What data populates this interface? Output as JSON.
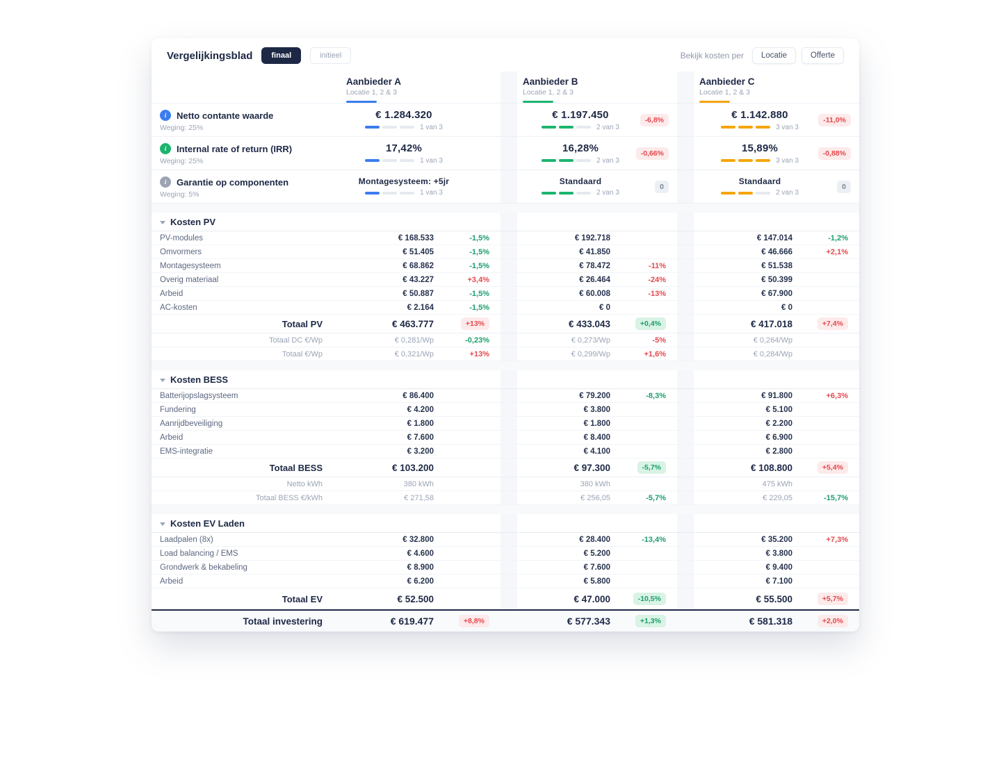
{
  "header": {
    "title": "Vergelijkingsblad",
    "toggles": [
      {
        "label": "finaal",
        "active": true
      },
      {
        "label": "initieel",
        "active": false
      }
    ],
    "view_by_label": "Bekijk kosten per",
    "view_by_options": [
      {
        "label": "Locatie"
      },
      {
        "label": "Offerte"
      }
    ]
  },
  "providers": [
    {
      "name": "Aanbieder A",
      "subtitle": "Locatie 1, 2 & 3",
      "color": "#3b7df0"
    },
    {
      "name": "Aanbieder B",
      "subtitle": "Locatie 1, 2 & 3",
      "color": "#1db56e"
    },
    {
      "name": "Aanbieder C",
      "subtitle": "Locatie 1, 2 & 3",
      "color": "#f5a60b"
    }
  ],
  "metrics": [
    {
      "label": "Netto contante waarde",
      "weight": "Weging: 25%",
      "icon": "info-icon",
      "icon_color": "#3b7df0",
      "cells": [
        {
          "value": "€ 1.284.320",
          "rank": 1,
          "rank_label": "1 van 3",
          "badge": null
        },
        {
          "value": "€ 1.197.450",
          "rank": 2,
          "rank_label": "2 van 3",
          "badge": {
            "text": "-6,8%",
            "type": "red"
          }
        },
        {
          "value": "€ 1.142.880",
          "rank": 3,
          "rank_label": "3 van 3",
          "badge": {
            "text": "-11,0%",
            "type": "red"
          }
        }
      ]
    },
    {
      "label": "Internal rate of return (IRR)",
      "weight": "Weging: 25%",
      "icon": "info-icon",
      "icon_color": "#1db56e",
      "cells": [
        {
          "value": "17,42%",
          "rank": 1,
          "rank_label": "1 van 3",
          "badge": null
        },
        {
          "value": "16,28%",
          "rank": 2,
          "rank_label": "2 van 3",
          "badge": {
            "text": "-0,66%",
            "type": "red"
          }
        },
        {
          "value": "15,89%",
          "rank": 3,
          "rank_label": "3 van 3",
          "badge": {
            "text": "-0,88%",
            "type": "red"
          }
        }
      ]
    },
    {
      "label": "Garantie op componenten",
      "weight": "Weging: 5%",
      "icon": "info-icon",
      "icon_color": "#9ca4b2",
      "cells": [
        {
          "value": "Montagesysteem: +5jr",
          "rank": 1,
          "rank_label": "1 van 3",
          "badge": null
        },
        {
          "value": "Standaard",
          "rank": 2,
          "rank_label": "2 van 3",
          "badge": {
            "text": "0",
            "type": "gray"
          }
        },
        {
          "value": "Standaard",
          "rank": 2,
          "rank_label": "2 van 3",
          "badge": {
            "text": "0",
            "type": "gray"
          }
        }
      ]
    }
  ],
  "sections": [
    {
      "title": "Kosten PV",
      "rows": [
        {
          "label": "PV-modules",
          "cells": [
            {
              "value": "€ 168.533",
              "delta": "-1,5%",
              "delta_color": "green"
            },
            {
              "value": "€ 192.718",
              "delta": null
            },
            {
              "value": "€ 147.014",
              "delta": "-1,2%",
              "delta_color": "green"
            }
          ]
        },
        {
          "label": "Omvormers",
          "cells": [
            {
              "value": "€ 51.405",
              "delta": "-1,5%",
              "delta_color": "green"
            },
            {
              "value": "€ 41.850",
              "delta": null
            },
            {
              "value": "€ 46.666",
              "delta": "+2,1%",
              "delta_color": "red"
            }
          ]
        },
        {
          "label": "Montagesysteem",
          "cells": [
            {
              "value": "€ 68.862",
              "delta": "-1,5%",
              "delta_color": "green"
            },
            {
              "value": "€ 78.472",
              "delta": "-11%",
              "delta_color": "red"
            },
            {
              "value": "€ 51.538",
              "delta": null
            }
          ]
        },
        {
          "label": "Overig materiaal",
          "cells": [
            {
              "value": "€ 43.227",
              "delta": "+3,4%",
              "delta_color": "red"
            },
            {
              "value": "€ 26.464",
              "delta": "-24%",
              "delta_color": "red"
            },
            {
              "value": "€ 50.399",
              "delta": null
            }
          ]
        },
        {
          "label": "Arbeid",
          "cells": [
            {
              "value": "€ 50.887",
              "delta": "-1,5%",
              "delta_color": "green"
            },
            {
              "value": "€ 60.008",
              "delta": "-13%",
              "delta_color": "red"
            },
            {
              "value": "€ 67.900",
              "delta": null
            }
          ]
        },
        {
          "label": "AC-kosten",
          "cells": [
            {
              "value": "€ 2.164",
              "delta": "-1,5%",
              "delta_color": "green"
            },
            {
              "value": "€ 0",
              "delta": null
            },
            {
              "value": "€ 0",
              "delta": null
            }
          ]
        }
      ],
      "total": {
        "label": "Totaal PV",
        "cells": [
          {
            "value": "€ 463.777",
            "badge": {
              "text": "+13%",
              "type": "red"
            }
          },
          {
            "value": "€ 433.043",
            "badge": {
              "text": "+0,4%",
              "type": "green"
            }
          },
          {
            "value": "€ 417.018",
            "badge": {
              "text": "+7,4%",
              "type": "red"
            }
          }
        ]
      },
      "subrows": [
        {
          "label": "Totaal DC €/Wp",
          "cells": [
            {
              "value": "€ 0,281/Wp",
              "delta": "-0,23%",
              "delta_color": "green"
            },
            {
              "value": "€ 0,273/Wp",
              "delta": "-5%",
              "delta_color": "red"
            },
            {
              "value": "€ 0,264/Wp",
              "delta": null
            }
          ]
        },
        {
          "label": "Totaal €/Wp",
          "cells": [
            {
              "value": "€ 0,321/Wp",
              "delta": "+13%",
              "delta_color": "red"
            },
            {
              "value": "€ 0,299/Wp",
              "delta": "+1,6%",
              "delta_color": "red"
            },
            {
              "value": "€ 0,284/Wp",
              "delta": null
            }
          ]
        }
      ]
    },
    {
      "title": "Kosten BESS",
      "rows": [
        {
          "label": "Batterijopslagsysteem",
          "cells": [
            {
              "value": "€ 86.400",
              "delta": null
            },
            {
              "value": "€ 79.200",
              "delta": "-8,3%",
              "delta_color": "green"
            },
            {
              "value": "€ 91.800",
              "delta": "+6,3%",
              "delta_color": "red"
            }
          ]
        },
        {
          "label": "Fundering",
          "cells": [
            {
              "value": "€ 4.200",
              "delta": null
            },
            {
              "value": "€ 3.800",
              "delta": null
            },
            {
              "value": "€ 5.100",
              "delta": null
            }
          ]
        },
        {
          "label": "Aanrijdbeveiliging",
          "cells": [
            {
              "value": "€ 1.800",
              "delta": null
            },
            {
              "value": "€ 1.800",
              "delta": null
            },
            {
              "value": "€ 2.200",
              "delta": null
            }
          ]
        },
        {
          "label": "Arbeid",
          "cells": [
            {
              "value": "€ 7.600",
              "delta": null
            },
            {
              "value": "€ 8.400",
              "delta": null
            },
            {
              "value": "€ 6.900",
              "delta": null
            }
          ]
        },
        {
          "label": "EMS-integratie",
          "cells": [
            {
              "value": "€ 3.200",
              "delta": null
            },
            {
              "value": "€ 4.100",
              "delta": null
            },
            {
              "value": "€ 2.800",
              "delta": null
            }
          ]
        }
      ],
      "total": {
        "label": "Totaal BESS",
        "cells": [
          {
            "value": "€ 103.200",
            "badge": null
          },
          {
            "value": "€ 97.300",
            "badge": {
              "text": "-5,7%",
              "type": "green"
            }
          },
          {
            "value": "€ 108.800",
            "badge": {
              "text": "+5,4%",
              "type": "red"
            }
          }
        ]
      },
      "subrows": [
        {
          "label": "Netto kWh",
          "cells": [
            {
              "value": "380 kWh",
              "delta": null
            },
            {
              "value": "380 kWh",
              "delta": null
            },
            {
              "value": "475 kWh",
              "delta": null
            }
          ]
        },
        {
          "label": "Totaal BESS €/kWh",
          "cells": [
            {
              "value": "€ 271,58",
              "delta": null
            },
            {
              "value": "€ 256,05",
              "delta": "-5,7%",
              "delta_color": "green"
            },
            {
              "value": "€ 229,05",
              "delta": "-15,7%",
              "delta_color": "green"
            }
          ]
        }
      ]
    },
    {
      "title": "Kosten EV Laden",
      "rows": [
        {
          "label": "Laadpalen (8x)",
          "cells": [
            {
              "value": "€ 32.800",
              "delta": null
            },
            {
              "value": "€ 28.400",
              "delta": "-13,4%",
              "delta_color": "green"
            },
            {
              "value": "€ 35.200",
              "delta": "+7,3%",
              "delta_color": "red"
            }
          ]
        },
        {
          "label": "Load balancing / EMS",
          "cells": [
            {
              "value": "€ 4.600",
              "delta": null
            },
            {
              "value": "€ 5.200",
              "delta": null
            },
            {
              "value": "€ 3.800",
              "delta": null
            }
          ]
        },
        {
          "label": "Grondwerk & bekabeling",
          "cells": [
            {
              "value": "€ 8.900",
              "delta": null
            },
            {
              "value": "€ 7.600",
              "delta": null
            },
            {
              "value": "€ 9.400",
              "delta": null
            }
          ]
        },
        {
          "label": "Arbeid",
          "cells": [
            {
              "value": "€ 6.200",
              "delta": null
            },
            {
              "value": "€ 5.800",
              "delta": null
            },
            {
              "value": "€ 7.100",
              "delta": null
            }
          ]
        }
      ],
      "total": {
        "label": "Totaal EV",
        "cells": [
          {
            "value": "€ 52.500",
            "badge": null
          },
          {
            "value": "€ 47.000",
            "badge": {
              "text": "-10,5%",
              "type": "green"
            }
          },
          {
            "value": "€ 55.500",
            "badge": {
              "text": "+5,7%",
              "type": "red"
            }
          }
        ]
      },
      "subrows": []
    }
  ],
  "grand_total": {
    "label": "Totaal investering",
    "cells": [
      {
        "value": "€ 619.477",
        "badge": {
          "text": "+8,8%",
          "type": "red"
        }
      },
      {
        "value": "€ 577.343",
        "badge": {
          "text": "+1,3%",
          "type": "green"
        }
      },
      {
        "value": "€ 581.318",
        "badge": {
          "text": "+2,0%",
          "type": "red"
        }
      }
    ]
  }
}
